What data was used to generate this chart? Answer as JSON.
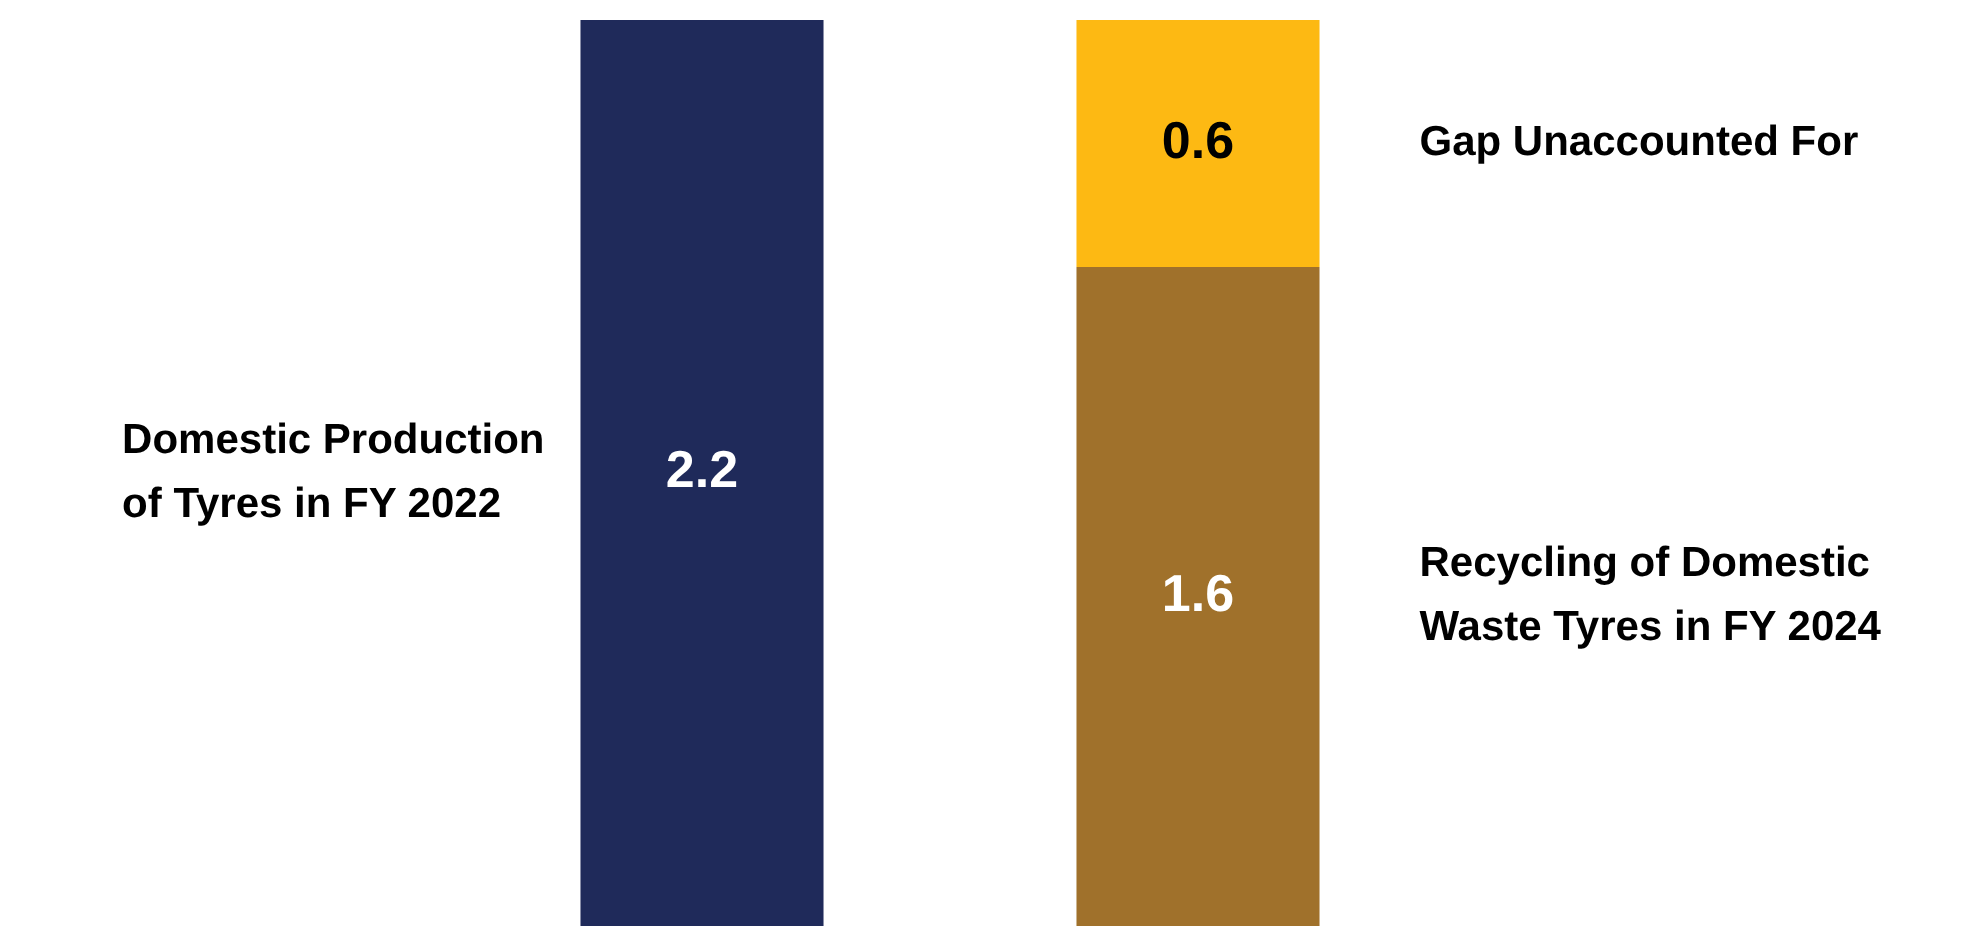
{
  "chart_data": {
    "type": "bar",
    "stacked": true,
    "data_labels": true,
    "categories": [
      null,
      null
    ],
    "series": [
      {
        "name": "Domestic Production of Tyres in FY 2022",
        "color": "#1f2a5a",
        "values": [
          2.2,
          null
        ]
      },
      {
        "name": "Recycling of Domestic Waste Tyres in FY 2024",
        "color": "#a0712b",
        "values": [
          null,
          1.6
        ]
      },
      {
        "name": "Gap Unaccounted For",
        "color": "#fdb913",
        "values": [
          null,
          0.6
        ]
      }
    ]
  }
}
